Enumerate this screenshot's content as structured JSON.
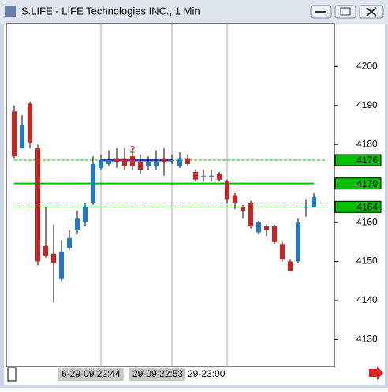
{
  "window": {
    "title": "S.LIFE - LIFE Technologies INC., 1 Min"
  },
  "chart_data": {
    "type": "candlestick",
    "categories": [
      null,
      null,
      null,
      null,
      null,
      null,
      null,
      null,
      null,
      null,
      null,
      "6-29-09 22:44",
      null,
      null,
      null,
      null,
      null,
      null,
      null,
      null,
      "29-09 22:53",
      null,
      null,
      null,
      null,
      null,
      null,
      "29-23:00",
      null,
      null,
      null,
      null,
      null,
      null,
      null,
      null,
      null,
      null,
      null
    ],
    "open": [
      4188.5,
      4179,
      4190.5,
      4179,
      4154,
      4152,
      4145.5,
      4153.5,
      4158,
      4160,
      4165,
      4174,
      4175,
      4176.5,
      4176.5,
      4177,
      4175.5,
      4174.5,
      4174.5,
      4176.5,
      4176,
      4174.5,
      4176.5,
      4173,
      4172,
      4172,
      4172.5,
      4170.5,
      4167,
      4164,
      4165,
      4157.5,
      4159,
      4159,
      4154.5,
      4150,
      4150,
      4164,
      4164
    ],
    "high": [
      4190,
      4187.5,
      4191,
      4180,
      4164,
      4159.5,
      4155.5,
      4158,
      4163,
      4165,
      4177,
      4177.5,
      4178.5,
      4179,
      4179,
      4179,
      4177.5,
      4177,
      4178.5,
      4179,
      4177.5,
      4178,
      4177.5,
      4173.5,
      4173.5,
      4173.5,
      4173,
      4171,
      4167.5,
      4164.5,
      4165.5,
      4160.5,
      4159.5,
      4159.5,
      4155,
      4150.5,
      4161,
      4166,
      4167.5
    ],
    "low": [
      4176.5,
      4179,
      4179,
      4149,
      4151,
      4139.5,
      4145,
      4153,
      4157,
      4159,
      4164.5,
      4173.5,
      4174.5,
      4174,
      4173.5,
      4173.5,
      4172.5,
      4173.5,
      4173.5,
      4172,
      4175,
      4174,
      4174.5,
      4170.5,
      4170.5,
      4170.5,
      4170.5,
      4165,
      4163.5,
      4161,
      4158.5,
      4157,
      4156.5,
      4154.5,
      4150,
      4147.5,
      4149.5,
      4161.5,
      4164
    ],
    "close": [
      4177,
      4185,
      4180.5,
      4150,
      4151.5,
      4149.5,
      4152.5,
      4156,
      4161,
      4164,
      4175,
      4176,
      4176,
      4175.5,
      4174.5,
      4174.5,
      4173.5,
      4175.5,
      4175.5,
      4175.5,
      4176,
      4176.5,
      4175,
      4171,
      4172,
      4172,
      4171,
      4166,
      4165,
      4163,
      4159,
      4160,
      4158,
      4155,
      4150.5,
      4147.5,
      4160,
      4164,
      4166.5
    ],
    "up_color": "#1e78d0",
    "down_color": "#d02020",
    "ylim": [
      4123,
      4211
    ],
    "yticks": [
      4130,
      4140,
      4150,
      4160,
      4170,
      4180,
      4190,
      4200
    ],
    "levels": [
      {
        "value": 4176,
        "dashed": true
      },
      {
        "value": 4170,
        "dashed": false
      },
      {
        "value": 4164,
        "dashed": true
      }
    ],
    "level_color": "#00c000",
    "trendline": {
      "start": 11,
      "end": 20,
      "value": 4176,
      "color": "#1f3fbf"
    },
    "annotation": "2"
  }
}
